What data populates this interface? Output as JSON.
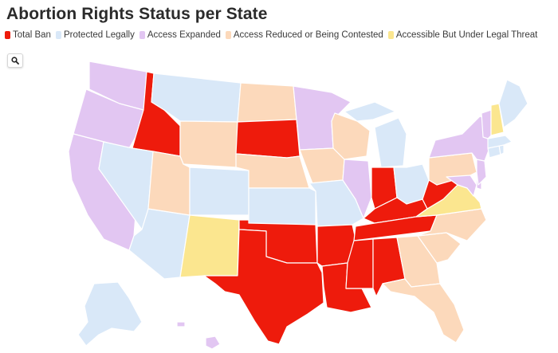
{
  "title": "Abortion Rights Status per State",
  "colors": {
    "total_ban": "#ee1b0c",
    "protected": "#d9e8f8",
    "expanded": "#e2c6f2",
    "reduced": "#fcd9bb",
    "threat": "#fbe68f"
  },
  "legend": [
    {
      "key": "total_ban",
      "label": "Total Ban"
    },
    {
      "key": "protected",
      "label": "Protected Legally"
    },
    {
      "key": "expanded",
      "label": "Access Expanded"
    },
    {
      "key": "reduced",
      "label": "Access Reduced or Being Contested"
    },
    {
      "key": "threat",
      "label": "Accessible But Under Legal Threat"
    }
  ],
  "controls": {
    "search_icon": "search-icon"
  },
  "states": {
    "WA": "expanded",
    "OR": "expanded",
    "CA": "expanded",
    "ID": "total_ban",
    "NV": "protected",
    "AZ": "protected",
    "MT": "protected",
    "WY": "reduced",
    "UT": "reduced",
    "CO": "protected",
    "NM": "threat",
    "ND": "reduced",
    "SD": "total_ban",
    "NE": "reduced",
    "KS": "protected",
    "OK": "total_ban",
    "TX": "total_ban",
    "MN": "expanded",
    "IA": "reduced",
    "MO": "protected",
    "AR": "total_ban",
    "LA": "total_ban",
    "WI": "reduced",
    "IL": "expanded",
    "MI": "protected",
    "IN": "total_ban",
    "OH": "protected",
    "KY": "total_ban",
    "TN": "total_ban",
    "MS": "total_ban",
    "AL": "total_ban",
    "GA": "reduced",
    "FL": "reduced",
    "SC": "reduced",
    "NC": "reduced",
    "VA": "threat",
    "WV": "total_ban",
    "MD": "expanded",
    "DE": "expanded",
    "PA": "reduced",
    "NY": "expanded",
    "NJ": "expanded",
    "CT": "protected",
    "RI": "protected",
    "MA": "protected",
    "VT": "expanded",
    "NH": "threat",
    "ME": "protected",
    "AK": "protected",
    "HI": "expanded"
  }
}
